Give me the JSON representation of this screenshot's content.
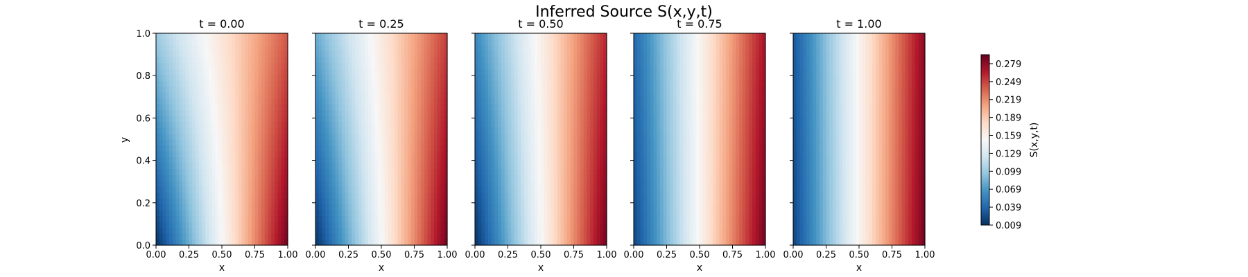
{
  "chart_data": {
    "type": "heatmap",
    "title": "Inferred Source S(x,y,t)",
    "xlabel": "x",
    "ylabel": "y",
    "xlim": [
      0,
      1
    ],
    "ylim": [
      0,
      1
    ],
    "x_ticks": [
      "0.00",
      "0.25",
      "0.50",
      "0.75",
      "1.00"
    ],
    "y_ticks": [
      "0.0",
      "0.2",
      "0.4",
      "0.6",
      "0.8",
      "1.0"
    ],
    "grid": false,
    "colormap": "RdBu_r",
    "panels": [
      {
        "title": "t = 0.00",
        "t": 0.0,
        "bottom_left": 0.01,
        "top_left": 0.1,
        "bottom_right": 0.29,
        "top_right": 0.24
      },
      {
        "title": "t = 0.25",
        "t": 0.25,
        "bottom_left": 0.01,
        "top_left": 0.08,
        "bottom_right": 0.29,
        "top_right": 0.25
      },
      {
        "title": "t = 0.50",
        "t": 0.5,
        "bottom_left": 0.01,
        "top_left": 0.06,
        "bottom_right": 0.29,
        "top_right": 0.26
      },
      {
        "title": "t = 0.75",
        "t": 0.75,
        "bottom_left": 0.02,
        "top_left": 0.04,
        "bottom_right": 0.29,
        "top_right": 0.27
      },
      {
        "title": "t = 1.00",
        "t": 1.0,
        "bottom_left": 0.02,
        "top_left": 0.03,
        "bottom_right": 0.29,
        "top_right": 0.28
      }
    ],
    "colorbar": {
      "label": "S(x,y,t)",
      "min": 0.009,
      "max": 0.294,
      "ticks": [
        "0.009",
        "0.039",
        "0.069",
        "0.099",
        "0.129",
        "0.159",
        "0.189",
        "0.219",
        "0.249",
        "0.279"
      ],
      "colors": [
        "#053061",
        "#2166ac",
        "#4393c3",
        "#92c5de",
        "#d1e5f0",
        "#f7f7f7",
        "#fddbc7",
        "#f4a582",
        "#d6604d",
        "#b2182b",
        "#67001f"
      ]
    }
  }
}
